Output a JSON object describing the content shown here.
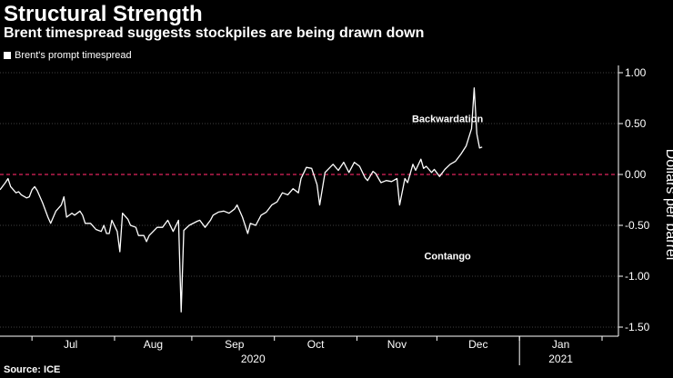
{
  "header": {
    "title": "Structural Strength",
    "subtitle": "Brent timespread suggests stockpiles are being drawn down"
  },
  "legend": {
    "label": "Brent's prompt timespread"
  },
  "footer": {
    "source": "Source: ICE"
  },
  "colors": {
    "background": "#000000",
    "line": "#ffffff",
    "zero_line": "#e0245e",
    "grid": "#555555"
  },
  "chart_data": {
    "type": "line",
    "title": "Structural Strength",
    "subtitle": "Brent timespread suggests stockpiles are being drawn down",
    "ylabel": "Dollars per barrel",
    "ylim": [
      -1.5,
      1.0
    ],
    "yticks": [
      -1.5,
      -1.0,
      -0.5,
      0.0,
      0.5,
      1.0
    ],
    "ytick_labels": [
      "-1.50",
      "-1.00",
      "-0.50",
      "0.00",
      "0.50",
      "1.00"
    ],
    "x_unit": "days since Jun 19, 2020",
    "xlim": [
      0,
      226
    ],
    "month_labels": [
      {
        "label": "Jul",
        "x": 26.5
      },
      {
        "label": "Aug",
        "x": 57.5
      },
      {
        "label": "Sep",
        "x": 88
      },
      {
        "label": "Oct",
        "x": 118.5
      },
      {
        "label": "Nov",
        "x": 149
      },
      {
        "label": "Dec",
        "x": 179.5
      },
      {
        "label": "Jan",
        "x": 210.5
      }
    ],
    "month_ticks": [
      12,
      43,
      72,
      103,
      134,
      164,
      195,
      226
    ],
    "year_labels": [
      {
        "label": "2020",
        "x": 95
      },
      {
        "label": "2021",
        "x": 210.5
      }
    ],
    "year_divider": 195,
    "annotations": [
      {
        "text": "Backwardation",
        "x": 168,
        "y": 0.55
      },
      {
        "text": "Contango",
        "x": 168,
        "y": -0.8
      }
    ],
    "series": [
      {
        "name": "Brent's prompt timespread",
        "points": [
          [
            0,
            -0.15
          ],
          [
            2,
            -0.08
          ],
          [
            3,
            -0.04
          ],
          [
            4,
            -0.12
          ],
          [
            6,
            -0.18
          ],
          [
            7,
            -0.17
          ],
          [
            8,
            -0.2
          ],
          [
            10,
            -0.23
          ],
          [
            11,
            -0.22
          ],
          [
            12,
            -0.15
          ],
          [
            13,
            -0.12
          ],
          [
            14,
            -0.16
          ],
          [
            16,
            -0.28
          ],
          [
            18,
            -0.42
          ],
          [
            19,
            -0.48
          ],
          [
            21,
            -0.36
          ],
          [
            23,
            -0.3
          ],
          [
            24,
            -0.22
          ],
          [
            25,
            -0.42
          ],
          [
            27,
            -0.38
          ],
          [
            28,
            -0.4
          ],
          [
            30,
            -0.36
          ],
          [
            31,
            -0.4
          ],
          [
            32,
            -0.48
          ],
          [
            34,
            -0.48
          ],
          [
            36,
            -0.54
          ],
          [
            38,
            -0.56
          ],
          [
            39,
            -0.5
          ],
          [
            40,
            -0.58
          ],
          [
            41,
            -0.58
          ],
          [
            42,
            -0.45
          ],
          [
            44,
            -0.56
          ],
          [
            45,
            -0.76
          ],
          [
            46,
            -0.38
          ],
          [
            48,
            -0.44
          ],
          [
            49,
            -0.5
          ],
          [
            51,
            -0.52
          ],
          [
            52,
            -0.6
          ],
          [
            54,
            -0.6
          ],
          [
            55,
            -0.66
          ],
          [
            56,
            -0.6
          ],
          [
            59,
            -0.52
          ],
          [
            61,
            -0.52
          ],
          [
            63,
            -0.45
          ],
          [
            65,
            -0.56
          ],
          [
            67,
            -0.45
          ],
          [
            68,
            -1.35
          ],
          [
            69,
            -0.55
          ],
          [
            71,
            -0.5
          ],
          [
            74,
            -0.46
          ],
          [
            75,
            -0.45
          ],
          [
            77,
            -0.52
          ],
          [
            79,
            -0.45
          ],
          [
            80,
            -0.4
          ],
          [
            82,
            -0.37
          ],
          [
            84,
            -0.36
          ],
          [
            86,
            -0.38
          ],
          [
            88,
            -0.34
          ],
          [
            89,
            -0.3
          ],
          [
            91,
            -0.42
          ],
          [
            93,
            -0.58
          ],
          [
            94,
            -0.48
          ],
          [
            96,
            -0.5
          ],
          [
            98,
            -0.4
          ],
          [
            100,
            -0.37
          ],
          [
            102,
            -0.3
          ],
          [
            104,
            -0.27
          ],
          [
            106,
            -0.18
          ],
          [
            108,
            -0.2
          ],
          [
            110,
            -0.14
          ],
          [
            112,
            -0.18
          ],
          [
            113,
            -0.04
          ],
          [
            115,
            0.07
          ],
          [
            117,
            0.06
          ],
          [
            119,
            -0.1
          ],
          [
            120,
            -0.3
          ],
          [
            122,
            0.02
          ],
          [
            125,
            0.1
          ],
          [
            127,
            0.04
          ],
          [
            129,
            0.12
          ],
          [
            131,
            0.02
          ],
          [
            133,
            0.12
          ],
          [
            135,
            0.08
          ],
          [
            137,
            -0.03
          ],
          [
            138,
            -0.06
          ],
          [
            140,
            0.03
          ],
          [
            141,
            0.01
          ],
          [
            143,
            -0.08
          ],
          [
            145,
            -0.06
          ],
          [
            147,
            -0.07
          ],
          [
            149,
            -0.04
          ],
          [
            150,
            -0.3
          ],
          [
            152,
            -0.04
          ],
          [
            153,
            -0.08
          ],
          [
            155,
            0.1
          ],
          [
            156,
            0.04
          ],
          [
            158,
            0.15
          ],
          [
            159,
            0.06
          ],
          [
            160,
            0.08
          ],
          [
            162,
            0.02
          ],
          [
            163,
            0.05
          ],
          [
            165,
            -0.02
          ],
          [
            167,
            0.05
          ],
          [
            169,
            0.1
          ],
          [
            171,
            0.13
          ],
          [
            173,
            0.2
          ],
          [
            175,
            0.28
          ],
          [
            177,
            0.45
          ],
          [
            178,
            0.85
          ],
          [
            179,
            0.4
          ],
          [
            180,
            0.26
          ],
          [
            181,
            0.27
          ]
        ]
      }
    ]
  }
}
